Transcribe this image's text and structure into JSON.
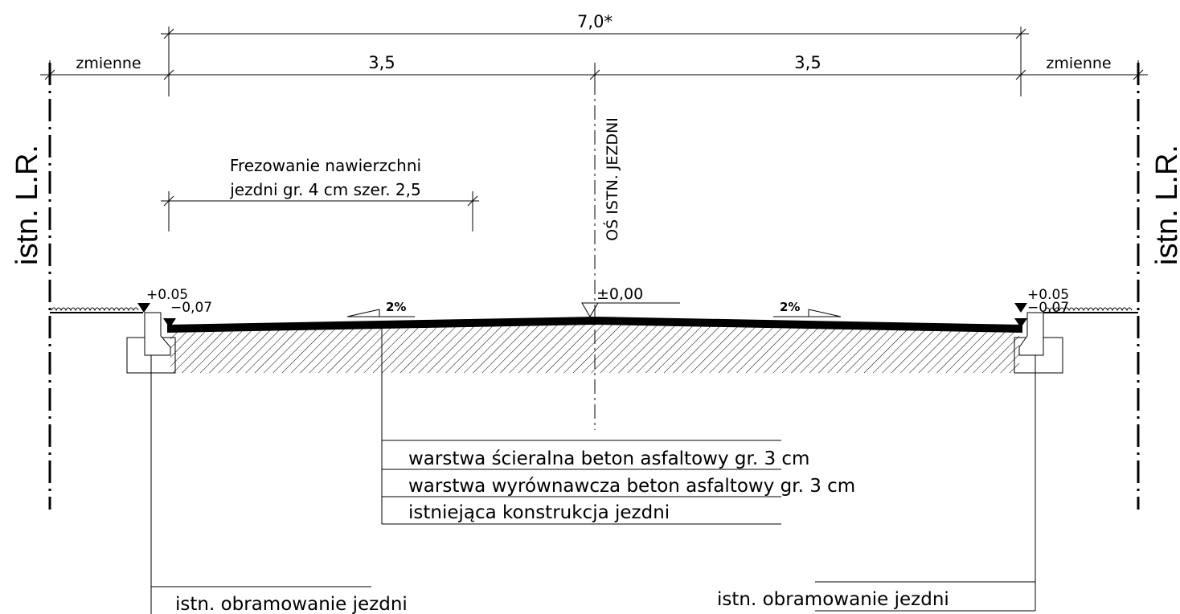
{
  "dimensions": {
    "total": "7,0*",
    "left_lane": "3,5",
    "right_lane": "3,5",
    "left_variable": "zmienne",
    "right_variable": "zmienne"
  },
  "side_labels": {
    "left": "istn. L.R.",
    "right": "istn. L.R."
  },
  "milling_note": {
    "line1": "Frezowanie nawierzchni",
    "line2": "jezdni gr. 4 cm szer. 2,5"
  },
  "axis_label": "OŚ ISTN. JEZDNI",
  "elevations": {
    "left_top": "+0.05",
    "left_bottom": "−0,07",
    "center": "±0,00",
    "right_top": "+0.05",
    "right_bottom": "−0.07"
  },
  "slopes": {
    "left": "2%",
    "right": "2%"
  },
  "layers": [
    "warstwa ścieralna beton asfaltowy gr. 3 cm",
    "warstwa wyrównawcza beton asfaltowy gr. 3 cm",
    "istniejąca konstrukcja jezdni"
  ],
  "curb_labels": {
    "left": "istn. obramowanie jezdni",
    "right": "istn. obramowanie jezdni"
  }
}
